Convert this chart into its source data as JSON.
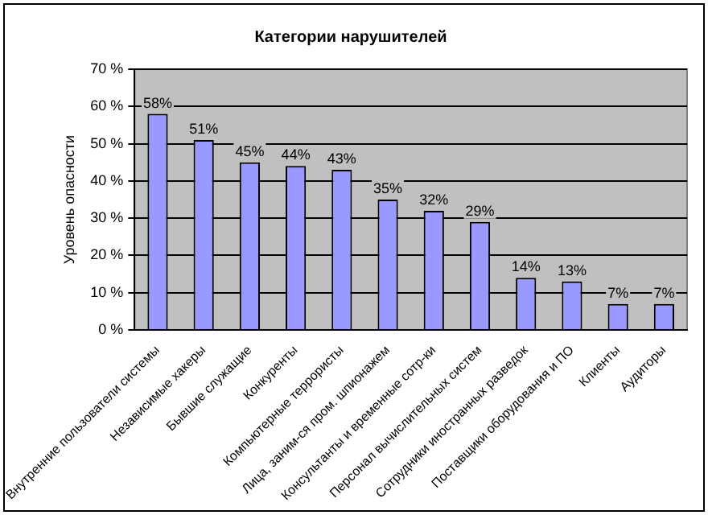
{
  "chart_data": {
    "type": "bar",
    "title": "Категории нарушителей",
    "ylabel": "Уровень опасности",
    "categories": [
      "Внутренние пользователи системы",
      "Независимые хакеры",
      "Бывшие служащие",
      "Конкуренты",
      "Компьютерные террористы",
      "Лица, заним-ся пром. шпионажем",
      "Консультанты и временные сотр-ки",
      "Персонал вычислительных систем",
      "Сотрудники иностранных разведок",
      "Поставщики оборудования и ПО",
      "Клиенты",
      "Аудиторы"
    ],
    "values": [
      58,
      51,
      45,
      44,
      43,
      35,
      32,
      29,
      14,
      13,
      7,
      7
    ],
    "value_labels": [
      "58%",
      "51%",
      "45%",
      "44%",
      "43%",
      "35%",
      "32%",
      "29%",
      "14%",
      "13%",
      "7%",
      "7%"
    ],
    "color": "#9999ff",
    "ylim": [
      0,
      70
    ],
    "yticks": [
      {
        "value": 0,
        "label": "0 %"
      },
      {
        "value": 10,
        "label": "10 %"
      },
      {
        "value": 20,
        "label": "20 %"
      },
      {
        "value": 30,
        "label": "30 %"
      },
      {
        "value": 40,
        "label": "40 %"
      },
      {
        "value": 50,
        "label": "50 %"
      },
      {
        "value": 60,
        "label": "60 %"
      },
      {
        "value": 70,
        "label": "70 %"
      }
    ],
    "grid": "y",
    "legend": false
  }
}
